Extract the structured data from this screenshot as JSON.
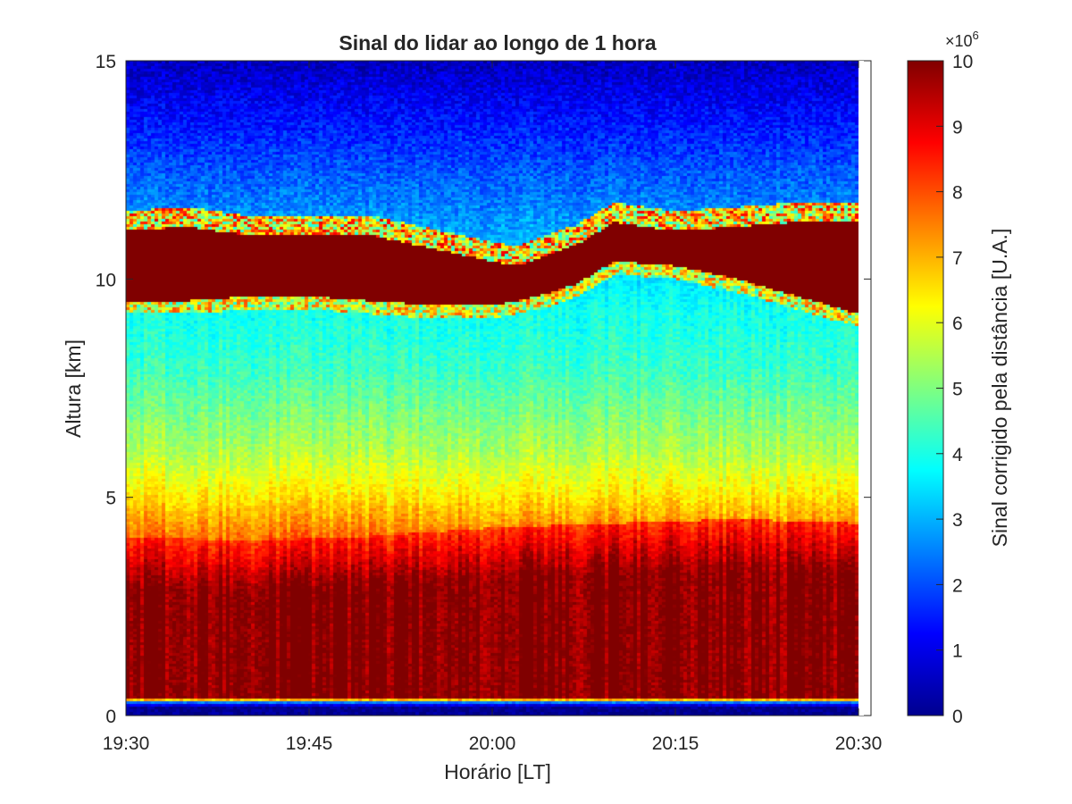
{
  "chart_data": {
    "type": "heatmap",
    "title": "Sinal do lidar ao longo de 1 hora",
    "xlabel": "Horário [LT]",
    "ylabel": "Altura [km]",
    "x_tick_labels": [
      "19:30",
      "19:45",
      "20:00",
      "20:15",
      "20:30"
    ],
    "x_tick_minutes": [
      0,
      15,
      30,
      45,
      60
    ],
    "xlim_minutes": [
      0,
      60
    ],
    "y_ticks": [
      0,
      5,
      10,
      15
    ],
    "ylim": [
      0,
      15
    ],
    "colorbar": {
      "label": "Sinal corrigido pela distância [U.A.]",
      "multiplier": "×10",
      "exponent": "6",
      "ticks": [
        0,
        1,
        2,
        3,
        4,
        5,
        6,
        7,
        8,
        9,
        10
      ],
      "clim": [
        0,
        10
      ],
      "colormap": "jet"
    },
    "value_units": "×10^6 U.A.",
    "profile_altitude_km": [
      0,
      0.2,
      0.3,
      0.4,
      1,
      2,
      2.8,
      3.3,
      4,
      5,
      6,
      7,
      8,
      9,
      9.4,
      15
    ],
    "profile_signal": [
      0.2,
      0.2,
      2.5,
      10,
      10,
      10,
      10,
      9.2,
      7.8,
      6.5,
      5.5,
      4.9,
      4.3,
      4.0,
      3.9,
      0.6
    ],
    "boundary_layer_top_km": {
      "time_minutes": [
        0,
        10,
        20,
        30,
        40,
        50,
        60
      ],
      "altitude_km": [
        2.9,
        2.8,
        2.9,
        3.1,
        3.2,
        3.3,
        3.2
      ]
    },
    "cloud_layer": {
      "time_minutes": [
        0,
        5,
        10,
        15,
        20,
        25,
        30,
        32,
        35,
        37,
        40,
        45,
        50,
        55,
        60
      ],
      "base_km": [
        9.5,
        9.5,
        9.6,
        9.6,
        9.5,
        9.4,
        9.4,
        9.5,
        9.7,
        9.9,
        10.4,
        10.3,
        10.0,
        9.6,
        9.2
      ],
      "top_km": [
        11.1,
        11.2,
        11.0,
        11.0,
        11.0,
        10.7,
        10.4,
        10.3,
        10.6,
        10.8,
        11.3,
        11.1,
        11.2,
        11.3,
        11.3
      ]
    }
  }
}
